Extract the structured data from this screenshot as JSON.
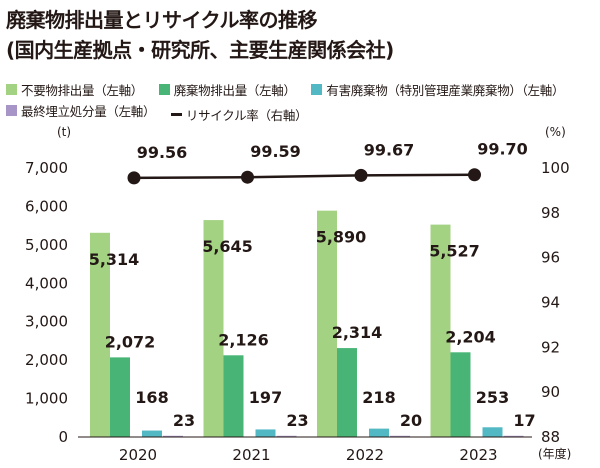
{
  "title_line1": "廃棄物排出量とリサイクル率の推移",
  "title_line2": "(国内生産拠点・研究所、主要生産関係会社)",
  "legend": [
    {
      "label": "不要物排出量（左軸）",
      "color": "#a3d283",
      "kind": "box"
    },
    {
      "label": "廃棄物排出量（左軸）",
      "color": "#48b576",
      "kind": "box"
    },
    {
      "label": "有害廃棄物（特別管理産業廃棄物）（左軸）",
      "color": "#52b8c4",
      "kind": "box"
    },
    {
      "label": "最終埋立処分量（左軸）",
      "color": "#a895c7",
      "kind": "box"
    },
    {
      "label": "リサイクル率（右軸）",
      "color": "#231815",
      "kind": "line"
    }
  ],
  "axis": {
    "left_unit": "(t)",
    "right_unit": "(%)",
    "x_unit": "(年度)",
    "left_ticks": [
      "0",
      "1,000",
      "2,000",
      "3,000",
      "4,000",
      "5,000",
      "6,000",
      "7,000"
    ],
    "right_ticks": [
      "88",
      "90",
      "92",
      "94",
      "96",
      "98",
      "100"
    ]
  },
  "chart_data": {
    "type": "bar",
    "categories": [
      "2020",
      "2021",
      "2022",
      "2023"
    ],
    "series": [
      {
        "name": "不要物排出量（左軸）",
        "values": [
          5314,
          5645,
          5890,
          5527
        ],
        "labels": [
          "5,314",
          "5,645",
          "5,890",
          "5,527"
        ],
        "color": "#a3d283",
        "axis": "left"
      },
      {
        "name": "廃棄物排出量（左軸）",
        "values": [
          2072,
          2126,
          2314,
          2204
        ],
        "labels": [
          "2,072",
          "2,126",
          "2,314",
          "2,204"
        ],
        "color": "#48b576",
        "axis": "left"
      },
      {
        "name": "有害廃棄物（特別管理産業廃棄物）（左軸）",
        "values": [
          168,
          197,
          218,
          253
        ],
        "labels": [
          "168",
          "197",
          "218",
          "253"
        ],
        "color": "#52b8c4",
        "axis": "left"
      },
      {
        "name": "最終埋立処分量（左軸）",
        "values": [
          23,
          23,
          20,
          17
        ],
        "labels": [
          "23",
          "23",
          "20",
          "17"
        ],
        "color": "#a895c7",
        "axis": "left"
      }
    ],
    "line": {
      "name": "リサイクル率（右軸）",
      "values": [
        99.56,
        99.59,
        99.67,
        99.7
      ],
      "labels": [
        "99.56",
        "99.59",
        "99.67",
        "99.70"
      ],
      "color": "#231815",
      "axis": "right"
    },
    "ylim_left": [
      0,
      7000
    ],
    "ylim_right": [
      88,
      100
    ],
    "grid": false,
    "legend_position": "top"
  }
}
